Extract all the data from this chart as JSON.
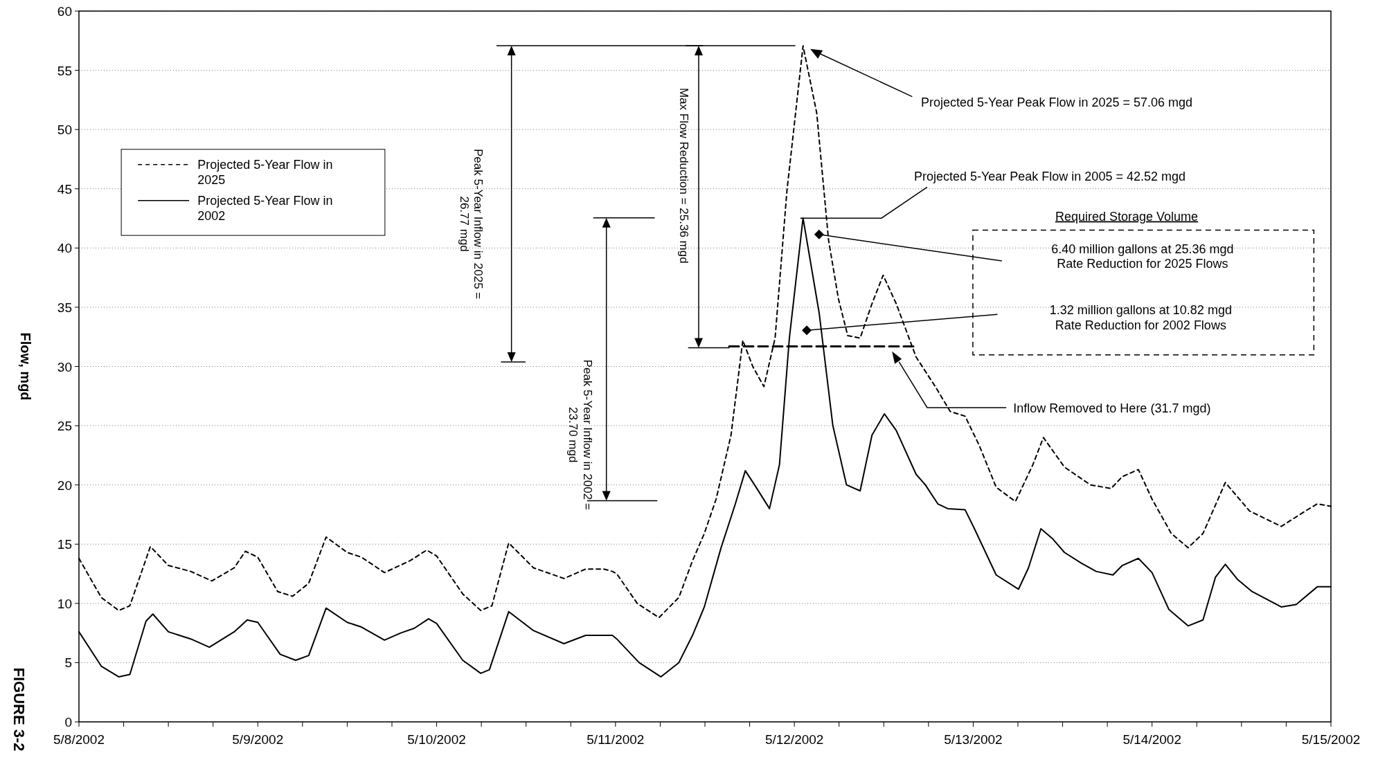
{
  "chart_data": {
    "type": "line",
    "ylabel": "Flow, mgd",
    "xlim": [
      "2002-05-08",
      "2002-05-15"
    ],
    "ylim": [
      0,
      60
    ],
    "xticks": [
      {
        "value": "2002-05-08",
        "label": "5/8/2002"
      },
      {
        "value": "2002-05-08T06:00",
        "label": null
      },
      {
        "value": "2002-05-08T12:00",
        "label": null
      },
      {
        "value": "2002-05-08T18:00",
        "label": null
      },
      {
        "value": "2002-05-09",
        "label": "5/9/2002"
      },
      {
        "value": "2002-05-09T06:00",
        "label": null
      },
      {
        "value": "2002-05-09T12:00",
        "label": null
      },
      {
        "value": "2002-05-09T18:00",
        "label": null
      },
      {
        "value": "2002-05-10",
        "label": "5/10/2002"
      },
      {
        "value": "2002-05-10T06:00",
        "label": null
      },
      {
        "value": "2002-05-10T12:00",
        "label": null
      },
      {
        "value": "2002-05-10T18:00",
        "label": null
      },
      {
        "value": "2002-05-11",
        "label": "5/11/2002"
      },
      {
        "value": "2002-05-11T06:00",
        "label": null
      },
      {
        "value": "2002-05-11T12:00",
        "label": null
      },
      {
        "value": "2002-05-11T18:00",
        "label": null
      },
      {
        "value": "2002-05-12",
        "label": "5/12/2002"
      },
      {
        "value": "2002-05-12T06:00",
        "label": null
      },
      {
        "value": "2002-05-12T12:00",
        "label": null
      },
      {
        "value": "2002-05-12T18:00",
        "label": null
      },
      {
        "value": "2002-05-13",
        "label": "5/13/2002"
      },
      {
        "value": "2002-05-13T06:00",
        "label": null
      },
      {
        "value": "2002-05-13T12:00",
        "label": null
      },
      {
        "value": "2002-05-13T18:00",
        "label": null
      },
      {
        "value": "2002-05-14",
        "label": "5/14/2002"
      },
      {
        "value": "2002-05-14T06:00",
        "label": null
      },
      {
        "value": "2002-05-14T12:00",
        "label": null
      },
      {
        "value": "2002-05-14T18:00",
        "label": null
      },
      {
        "value": "2002-05-15",
        "label": "5/15/2002"
      }
    ],
    "yticks": [
      0,
      5,
      10,
      15,
      20,
      25,
      30,
      35,
      40,
      45,
      50,
      55,
      60
    ],
    "grid": "y",
    "legend": "top left",
    "series": [
      {
        "name": "Projected 5-Year Flow in 2025",
        "color": "#000000",
        "line_style": "dashed",
        "x": [
          "2002-05-08T00:00",
          "2002-05-08T03:00",
          "2002-05-08T05:20",
          "2002-05-08T06:50",
          "2002-05-08T09:35",
          "2002-05-08T12:00",
          "2002-05-08T15:00",
          "2002-05-08T17:50",
          "2002-05-08T20:50",
          "2002-05-08T22:20",
          "2002-05-09T00:00",
          "2002-05-09T02:40",
          "2002-05-09T04:40",
          "2002-05-09T06:50",
          "2002-05-09T09:10",
          "2002-05-09T12:00",
          "2002-05-09T13:55",
          "2002-05-09T17:00",
          "2002-05-09T20:25",
          "2002-05-09T22:40",
          "2002-05-10T00:00",
          "2002-05-10T03:30",
          "2002-05-10T05:55",
          "2002-05-10T07:25",
          "2002-05-10T09:40",
          "2002-05-10T13:00",
          "2002-05-10T17:05",
          "2002-05-10T20:00",
          "2002-05-10T22:25",
          "2002-05-10T23:35",
          "2002-05-11T00:10",
          "2002-05-11T02:55",
          "2002-05-11T05:50",
          "2002-05-11T08:30",
          "2002-05-11T10:20",
          "2002-05-11T11:55",
          "2002-05-11T13:30",
          "2002-05-11T15:30",
          "2002-05-11T17:05",
          "2002-05-11T18:25",
          "2002-05-11T19:55",
          "2002-05-11T21:25",
          "2002-05-11T23:00",
          "2002-05-12T01:10",
          "2002-05-12T03:00",
          "2002-05-12T04:35",
          "2002-05-12T05:55",
          "2002-05-12T07:10",
          "2002-05-12T08:50",
          "2002-05-12T10:25",
          "2002-05-12T11:55",
          "2002-05-12T13:40",
          "2002-05-12T16:20",
          "2002-05-12T18:55",
          "2002-05-12T20:55",
          "2002-05-12T22:55",
          "2002-05-13T00:50",
          "2002-05-13T03:05",
          "2002-05-13T05:40",
          "2002-05-13T08:00",
          "2002-05-13T09:25",
          "2002-05-13T12:15",
          "2002-05-13T15:45",
          "2002-05-13T18:30",
          "2002-05-13T20:00",
          "2002-05-13T22:10",
          "2002-05-14T00:00",
          "2002-05-14T02:35",
          "2002-05-14T04:50",
          "2002-05-14T06:50",
          "2002-05-14T09:50",
          "2002-05-14T13:05",
          "2002-05-14T17:20",
          "2002-05-14T20:35",
          "2002-05-14T22:10",
          "2002-05-15T00:00"
        ],
        "values": [
          13.8,
          10.5,
          9.4,
          9.8,
          14.8,
          13.2,
          12.7,
          11.9,
          13.0,
          14.4,
          13.9,
          11.0,
          10.6,
          11.7,
          15.6,
          14.3,
          13.9,
          12.6,
          13.6,
          14.5,
          14.0,
          10.8,
          9.4,
          9.8,
          15.1,
          13.0,
          12.1,
          12.9,
          12.9,
          12.7,
          12.5,
          10.0,
          8.8,
          10.5,
          13.6,
          15.9,
          18.8,
          24.2,
          32.2,
          30.0,
          28.3,
          32.4,
          44.8,
          57.06,
          51.4,
          40.7,
          35.7,
          32.6,
          32.4,
          35.3,
          37.7,
          35.3,
          30.8,
          28.3,
          26.2,
          25.8,
          23.3,
          19.8,
          18.6,
          21.7,
          24.0,
          21.5,
          20.0,
          19.7,
          20.7,
          21.3,
          18.8,
          15.9,
          14.7,
          15.9,
          20.2,
          17.8,
          16.5,
          17.8,
          18.4,
          18.2
        ]
      },
      {
        "name": "Projected 5-Year Flow in 2002",
        "color": "#000000",
        "line_style": "solid",
        "x": [
          "2002-05-08T00:00",
          "2002-05-08T03:00",
          "2002-05-08T05:20",
          "2002-05-08T06:50",
          "2002-05-08T09:00",
          "2002-05-08T09:55",
          "2002-05-08T12:00",
          "2002-05-08T15:00",
          "2002-05-08T17:30",
          "2002-05-08T20:50",
          "2002-05-08T22:35",
          "2002-05-09T00:00",
          "2002-05-09T03:00",
          "2002-05-09T05:05",
          "2002-05-09T06:50",
          "2002-05-09T09:10",
          "2002-05-09T12:00",
          "2002-05-09T13:55",
          "2002-05-09T17:00",
          "2002-05-09T19:10",
          "2002-05-09T21:00",
          "2002-05-09T22:55",
          "2002-05-10T00:00",
          "2002-05-10T03:30",
          "2002-05-10T05:55",
          "2002-05-10T07:05",
          "2002-05-10T09:40",
          "2002-05-10T13:00",
          "2002-05-10T17:05",
          "2002-05-10T20:00",
          "2002-05-10T22:25",
          "2002-05-10T23:35",
          "2002-05-11T00:10",
          "2002-05-11T03:10",
          "2002-05-11T06:05",
          "2002-05-11T08:30",
          "2002-05-11T10:20",
          "2002-05-11T11:55",
          "2002-05-11T14:10",
          "2002-05-11T16:05",
          "2002-05-11T17:25",
          "2002-05-11T18:40",
          "2002-05-11T20:40",
          "2002-05-11T22:00",
          "2002-05-11T23:20",
          "2002-05-12T01:10",
          "2002-05-12T03:20",
          "2002-05-12T05:10",
          "2002-05-12T07:00",
          "2002-05-12T08:50",
          "2002-05-12T10:25",
          "2002-05-12T12:05",
          "2002-05-12T13:40",
          "2002-05-12T16:20",
          "2002-05-12T17:35",
          "2002-05-12T19:15",
          "2002-05-12T20:35",
          "2002-05-12T22:55",
          "2002-05-13T00:10",
          "2002-05-13T03:05",
          "2002-05-13T06:05",
          "2002-05-13T07:25",
          "2002-05-13T09:05",
          "2002-05-13T10:35",
          "2002-05-13T12:15",
          "2002-05-13T14:30",
          "2002-05-13T16:30",
          "2002-05-13T18:45",
          "2002-05-13T20:00",
          "2002-05-13T22:10",
          "2002-05-14T00:00",
          "2002-05-14T02:15",
          "2002-05-14T04:50",
          "2002-05-14T06:50",
          "2002-05-14T08:30",
          "2002-05-14T09:50",
          "2002-05-14T11:30",
          "2002-05-14T13:25",
          "2002-05-14T17:20",
          "2002-05-14T19:20",
          "2002-05-14T22:10",
          "2002-05-15T00:00"
        ],
        "values": [
          7.6,
          4.7,
          3.8,
          4.0,
          8.5,
          9.1,
          7.6,
          7.0,
          6.3,
          7.6,
          8.6,
          8.4,
          5.7,
          5.2,
          5.6,
          9.6,
          8.4,
          8.0,
          6.9,
          7.5,
          7.9,
          8.7,
          8.3,
          5.2,
          4.1,
          4.4,
          9.3,
          7.7,
          6.6,
          7.3,
          7.3,
          7.3,
          7.0,
          5.0,
          3.8,
          5.0,
          7.3,
          9.7,
          14.7,
          18.4,
          21.2,
          20.0,
          18.0,
          21.7,
          32.4,
          42.52,
          34.5,
          25.0,
          20.0,
          19.5,
          24.2,
          26.0,
          24.6,
          20.9,
          20.0,
          18.4,
          18.0,
          17.9,
          16.3,
          12.4,
          11.2,
          13.0,
          16.3,
          15.5,
          14.3,
          13.4,
          12.7,
          12.4,
          13.2,
          13.8,
          12.6,
          9.5,
          8.1,
          8.6,
          12.2,
          13.3,
          12.0,
          11.0,
          9.7,
          9.9,
          11.4,
          11.4
        ]
      },
      {
        "color": "#000000",
        "line_style": "dashed",
        "x": [
          "2002-05-11T15:15",
          "2002-05-12T16:00"
        ],
        "values": [
          31.7,
          31.7
        ]
      }
    ],
    "annotations": [
      "Projected 5-Year Peak Flow in 2025 = 57.06 mgd",
      {
        "text": "Projected 5-Year Peak Flow in 2005 = 42.52 mgd",
        "x": "2002-05-12T01:10",
        "y": 42.52
      },
      "Required Storage Volume",
      "6.40 million gallons at 25.36 mgd\nRate Reduction for 2025 Flows",
      "1.32 million gallons at 10.82 mgd\nRate Reduction for 2002 Flows",
      "Inflow Removed to Here (31.7 mgd)",
      "Peak 5-Year Inflow in 2025 =\n26.77 mgd",
      "Max Flow Reduction = 25.36 mgd",
      "Peak 5-Year Inflow in 2002 =\n23.70 mgd",
      "FIGURE 3-2"
    ]
  }
}
